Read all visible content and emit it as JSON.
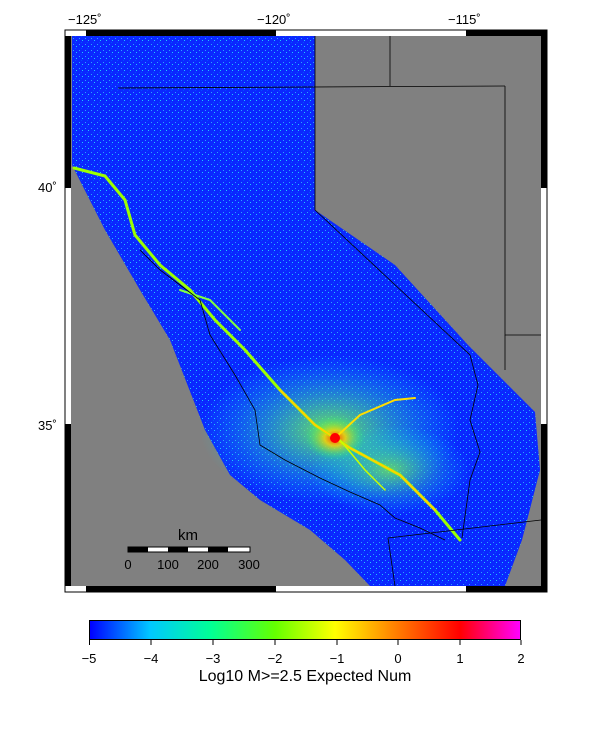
{
  "map": {
    "lon_ticks": [
      "−125˚",
      "−120˚",
      "−115˚"
    ],
    "lat_ticks": [
      "40˚",
      "35˚"
    ],
    "background_color": "#808080"
  },
  "scalebar": {
    "unit": "km",
    "labels": [
      "0",
      "100",
      "200",
      "300"
    ]
  },
  "colorbar": {
    "ticks": [
      "−5",
      "−4",
      "−3",
      "−2",
      "−1",
      "0",
      "1",
      "2"
    ],
    "title": "Log10 M>=2.5 Expected Num",
    "colors": [
      "#0000ff",
      "#00c8ff",
      "#00ff96",
      "#64ff00",
      "#ffff00",
      "#ff8000",
      "#ff0000",
      "#ff00ff"
    ]
  }
}
